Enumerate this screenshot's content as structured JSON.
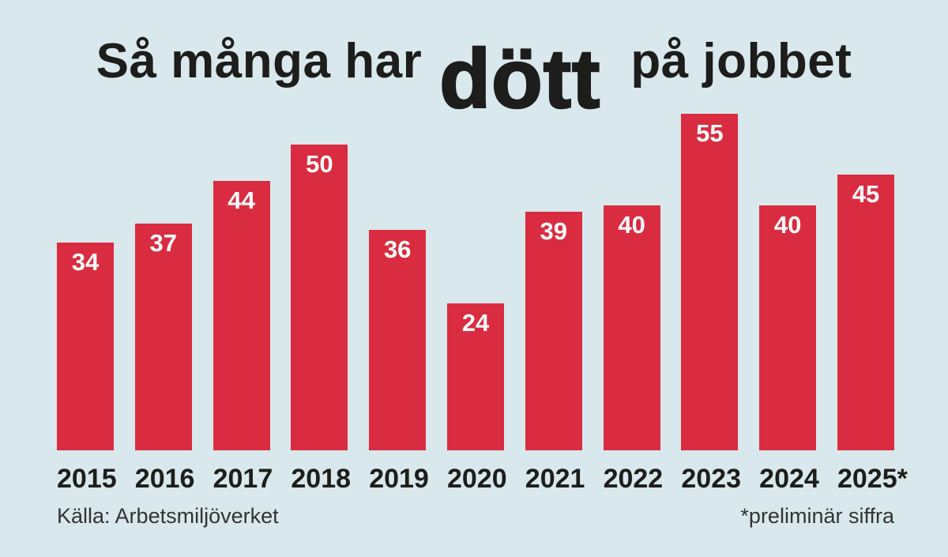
{
  "title": {
    "prefix": "Så många har",
    "emphasis": "dött",
    "suffix": "på jobbet"
  },
  "chart_data": {
    "type": "bar",
    "title": "Så många har dött på jobbet",
    "categories": [
      "2015",
      "2016",
      "2017",
      "2018",
      "2019",
      "2020",
      "2021",
      "2022",
      "2023",
      "2024",
      "2025*"
    ],
    "values": [
      34,
      37,
      44,
      50,
      36,
      24,
      39,
      40,
      55,
      40,
      45
    ],
    "xlabel": "",
    "ylabel": "",
    "ylim": [
      0,
      55
    ],
    "grid": false,
    "legend": "none",
    "value_label_position": "inside-top",
    "source": "Källa: Arbetsmiljöverket",
    "footnote": "*preliminär siffra"
  },
  "footer": {
    "source": "Källa: Arbetsmiljöverket",
    "footnote": "*preliminär siffra"
  },
  "colors": {
    "background": "#d9e8ed",
    "bar": "#d92c40",
    "title_text": "#1d1d1b",
    "axis_text": "#1d1d1b",
    "value_text": "#ffffff",
    "footer_text": "#333333"
  }
}
